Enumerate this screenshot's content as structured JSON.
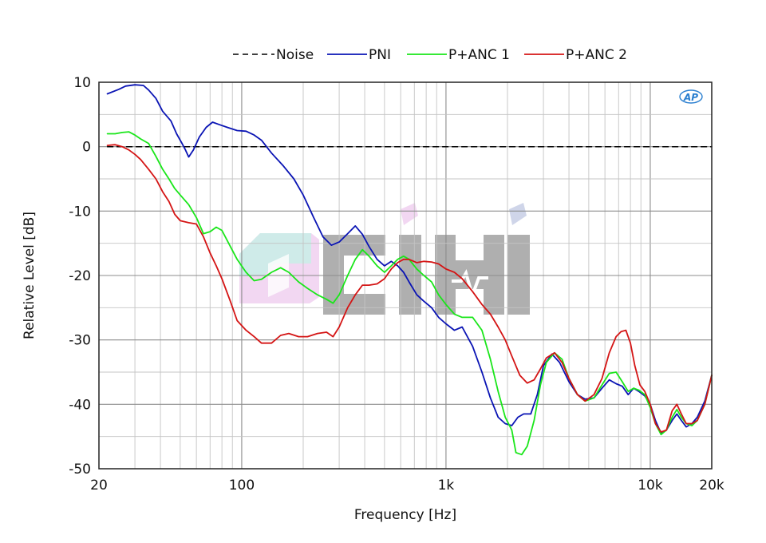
{
  "chart_data": {
    "type": "line",
    "xlabel": "Frequency [Hz]",
    "ylabel": "Relative Level [dB]",
    "xscale": "log",
    "xlim": [
      20,
      20000
    ],
    "ylim": [
      -50,
      10
    ],
    "grid": true,
    "legend_position": "top",
    "x_tick_labels": [
      {
        "value": 20,
        "label": "20"
      },
      {
        "value": 100,
        "label": "100"
      },
      {
        "value": 1000,
        "label": "1k"
      },
      {
        "value": 10000,
        "label": "10k"
      },
      {
        "value": 20000,
        "label": "20k"
      }
    ],
    "y_tick_labels": [
      {
        "value": 10,
        "label": "10"
      },
      {
        "value": 0,
        "label": "0"
      },
      {
        "value": -10,
        "label": "-10"
      },
      {
        "value": -20,
        "label": "-20"
      },
      {
        "value": -30,
        "label": "-30"
      },
      {
        "value": -40,
        "label": "-40"
      },
      {
        "value": -50,
        "label": "-50"
      }
    ],
    "logo_text": "AP",
    "series": [
      {
        "name": "Noise",
        "color": "#000000",
        "dash": "dashed",
        "x": [
          22,
          20000
        ],
        "y": [
          0,
          0
        ]
      },
      {
        "name": "PNI",
        "color": "#0a14b4",
        "dash": "solid",
        "x": [
          22,
          25,
          27,
          30,
          33,
          35,
          38,
          41,
          45,
          48,
          51,
          53,
          55,
          58,
          62,
          67,
          72,
          78,
          85,
          95,
          105,
          115,
          125,
          140,
          160,
          180,
          200,
          225,
          250,
          275,
          300,
          330,
          360,
          390,
          420,
          460,
          500,
          540,
          580,
          620,
          660,
          720,
          780,
          850,
          920,
          1000,
          1100,
          1200,
          1350,
          1500,
          1650,
          1800,
          1950,
          2100,
          2250,
          2400,
          2600,
          2800,
          3000,
          3300,
          3600,
          4000,
          4400,
          4800,
          5300,
          5800,
          6300,
          6800,
          7300,
          7800,
          8300,
          8800,
          9400,
          10000,
          10600,
          11300,
          12000,
          12800,
          13500,
          14200,
          15000,
          16000,
          17000,
          18500,
          20000
        ],
        "y": [
          8.2,
          8.9,
          9.4,
          9.6,
          9.5,
          8.8,
          7.5,
          5.5,
          4.0,
          2.0,
          0.5,
          -0.5,
          -1.6,
          -0.5,
          1.5,
          3.0,
          3.8,
          3.4,
          3.0,
          2.5,
          2.4,
          1.8,
          1.0,
          -1.0,
          -3.0,
          -5.0,
          -7.5,
          -11.0,
          -14.0,
          -15.3,
          -14.8,
          -13.5,
          -12.3,
          -13.6,
          -15.5,
          -17.5,
          -18.5,
          -17.8,
          -18.5,
          -19.5,
          -21.0,
          -23.0,
          -24.0,
          -25.0,
          -26.5,
          -27.5,
          -28.5,
          -28.0,
          -31.0,
          -35.0,
          -39.0,
          -42.0,
          -43.0,
          -43.3,
          -42.0,
          -41.5,
          -41.5,
          -38.5,
          -34.0,
          -32.2,
          -33.5,
          -36.5,
          -38.5,
          -39.2,
          -39.0,
          -37.5,
          -36.2,
          -36.8,
          -37.2,
          -38.5,
          -37.5,
          -38.0,
          -38.7,
          -40.0,
          -42.5,
          -44.5,
          -44.0,
          -42.5,
          -41.5,
          -42.5,
          -43.5,
          -43.0,
          -42.0,
          -39.5,
          -35.5
        ]
      },
      {
        "name": "P+ANC 1",
        "color": "#1ae61a",
        "dash": "solid",
        "x": [
          22,
          24,
          26,
          28,
          30,
          32,
          35,
          38,
          41,
          44,
          47,
          50,
          55,
          60,
          65,
          70,
          75,
          80,
          88,
          95,
          105,
          115,
          125,
          140,
          155,
          170,
          190,
          210,
          235,
          260,
          280,
          300,
          330,
          360,
          390,
          420,
          460,
          500,
          540,
          580,
          620,
          660,
          720,
          780,
          850,
          920,
          1000,
          1100,
          1200,
          1350,
          1500,
          1650,
          1800,
          1950,
          2100,
          2200,
          2350,
          2500,
          2700,
          2900,
          3100,
          3400,
          3700,
          4000,
          4400,
          4800,
          5300,
          5800,
          6300,
          6800,
          7300,
          7800,
          8300,
          8800,
          9400,
          10000,
          10600,
          11300,
          12000,
          12800,
          13500,
          14200,
          15000,
          16000,
          17000,
          18500,
          20000
        ],
        "y": [
          2.0,
          2.0,
          2.2,
          2.3,
          1.8,
          1.2,
          0.5,
          -1.5,
          -3.5,
          -5.0,
          -6.5,
          -7.5,
          -9.0,
          -11.0,
          -13.5,
          -13.2,
          -12.5,
          -13.0,
          -15.5,
          -17.5,
          -19.5,
          -20.8,
          -20.6,
          -19.5,
          -18.8,
          -19.5,
          -21.0,
          -22.0,
          -23.0,
          -23.7,
          -24.3,
          -23.0,
          -20.0,
          -17.5,
          -16.0,
          -17.0,
          -18.5,
          -19.5,
          -18.5,
          -17.5,
          -17.0,
          -17.5,
          -19.0,
          -20.0,
          -21.0,
          -23.0,
          -24.5,
          -26.0,
          -26.5,
          -26.5,
          -28.5,
          -33.0,
          -38.0,
          -42.0,
          -44.0,
          -47.5,
          -47.8,
          -46.5,
          -42.5,
          -37.0,
          -33.5,
          -32.0,
          -33.0,
          -36.0,
          -38.5,
          -39.5,
          -39.0,
          -37.0,
          -35.2,
          -35.0,
          -36.5,
          -38.0,
          -37.5,
          -37.8,
          -38.5,
          -40.5,
          -43.0,
          -44.7,
          -44.0,
          -42.0,
          -40.8,
          -42.0,
          -43.0,
          -43.3,
          -42.5,
          -40.0,
          -35.5
        ]
      },
      {
        "name": "P+ANC 2",
        "color": "#d41414",
        "dash": "solid",
        "x": [
          22,
          24,
          26,
          28,
          30,
          32,
          35,
          38,
          41,
          44,
          47,
          50,
          55,
          60,
          65,
          70,
          75,
          80,
          88,
          95,
          105,
          115,
          125,
          140,
          155,
          170,
          190,
          210,
          235,
          260,
          280,
          300,
          330,
          360,
          390,
          420,
          460,
          500,
          540,
          580,
          620,
          660,
          720,
          780,
          850,
          920,
          1000,
          1100,
          1200,
          1350,
          1500,
          1650,
          1800,
          1950,
          2100,
          2300,
          2500,
          2700,
          2900,
          3100,
          3400,
          3700,
          4000,
          4400,
          4800,
          5300,
          5800,
          6300,
          6800,
          7200,
          7600,
          8000,
          8400,
          8900,
          9400,
          10000,
          10600,
          11300,
          12000,
          12800,
          13500,
          14200,
          15000,
          16000,
          17000,
          18500,
          20000
        ],
        "y": [
          0.2,
          0.3,
          0.0,
          -0.5,
          -1.2,
          -2.0,
          -3.5,
          -5.0,
          -7.0,
          -8.5,
          -10.5,
          -11.5,
          -11.8,
          -12.0,
          -14.0,
          -16.5,
          -18.5,
          -20.5,
          -24.0,
          -27.0,
          -28.5,
          -29.5,
          -30.5,
          -30.5,
          -29.3,
          -29.0,
          -29.5,
          -29.5,
          -29.0,
          -28.8,
          -29.5,
          -28.0,
          -25.0,
          -23.0,
          -21.5,
          -21.5,
          -21.3,
          -20.5,
          -19.0,
          -18.0,
          -17.5,
          -17.5,
          -18.0,
          -17.8,
          -17.9,
          -18.2,
          -19.0,
          -19.5,
          -20.5,
          -22.5,
          -24.5,
          -26.0,
          -28.0,
          -30.0,
          -32.5,
          -35.5,
          -36.7,
          -36.2,
          -34.5,
          -32.8,
          -32.0,
          -33.5,
          -36.0,
          -38.5,
          -39.5,
          -38.5,
          -36.0,
          -32.0,
          -29.5,
          -28.7,
          -28.5,
          -30.5,
          -34.0,
          -37.0,
          -38.0,
          -40.0,
          -43.0,
          -44.3,
          -44.0,
          -41.0,
          -40.0,
          -41.5,
          -43.0,
          -43.0,
          -42.5,
          -40.0,
          -35.5
        ]
      }
    ]
  }
}
